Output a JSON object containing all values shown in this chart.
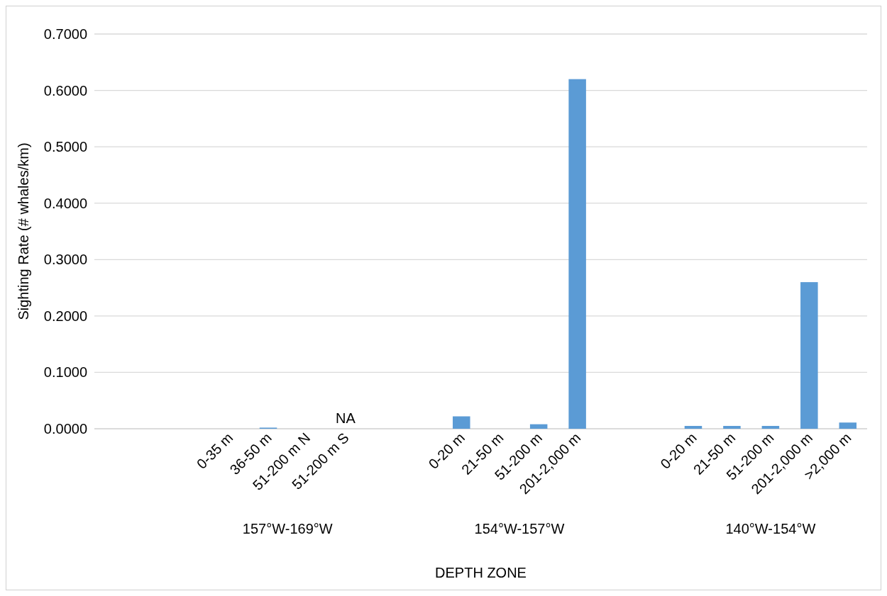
{
  "chart_data": {
    "type": "bar",
    "xlabel": "DEPTH ZONE",
    "ylabel": "Sighting Rate (# whales/km)",
    "categories": [
      null,
      null,
      null,
      "0-35 m",
      "36-50 m",
      "51-200 m N",
      "51-200 m S",
      null,
      null,
      "0-20 m",
      "21-50 m",
      "51-200 m",
      "201-2,000 m",
      null,
      null,
      "0-20 m",
      "21-50 m",
      "51-200 m",
      "201-2,000 m",
      ">2,000 m"
    ],
    "values": [
      null,
      null,
      null,
      0,
      0.002,
      0,
      null,
      null,
      null,
      0.022,
      0,
      0.008,
      0.62,
      null,
      null,
      0.005,
      0.005,
      0.005,
      0.26,
      0.011
    ],
    "color": "#5b9bd5",
    "ylim": [
      0,
      0.7
    ],
    "yticks": [
      {
        "value": 0,
        "label": "0.0000"
      },
      {
        "value": 0.1,
        "label": "0.1000"
      },
      {
        "value": 0.2,
        "label": "0.2000"
      },
      {
        "value": 0.3,
        "label": "0.3000"
      },
      {
        "value": 0.4,
        "label": "0.4000"
      },
      {
        "value": 0.5,
        "label": "0.5000"
      },
      {
        "value": 0.6,
        "label": "0.6000"
      },
      {
        "value": 0.7,
        "label": "0.7000"
      }
    ],
    "grid": "y",
    "annotations": [
      "157°W-169°W",
      "154°W-157°W",
      "140°W-154°W",
      "NA"
    ]
  }
}
